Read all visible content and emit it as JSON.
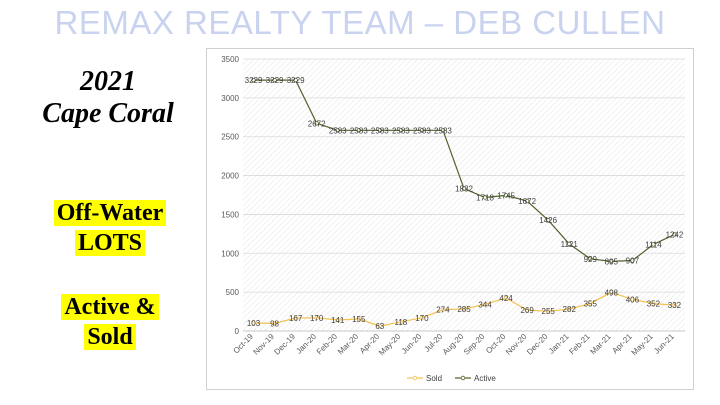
{
  "banner": {
    "title": "REMAX REALTY TEAM – DEB CULLEN"
  },
  "side": {
    "year": "2021",
    "city": "Cape Coral",
    "lots_line1": "Off-Water",
    "lots_line2": "LOTS",
    "active_line1": "Active &",
    "active_line2": "Sold"
  },
  "chart_data": {
    "type": "line",
    "categories": [
      "Oct-19",
      "Nov-19",
      "Dec-19",
      "Jan-20",
      "Feb-20",
      "Mar-20",
      "Apr-20",
      "May-20",
      "Jun-20",
      "Jul-20",
      "Aug-20",
      "Sep-20",
      "Oct-20",
      "Nov-20",
      "Dec-20",
      "Jan-21",
      "Feb-21",
      "Mar-21",
      "Apr-21",
      "May-21",
      "Jun-21"
    ],
    "series": [
      {
        "name": "Sold",
        "color": "#f2c14e",
        "values": [
          103,
          98,
          167,
          170,
          141,
          155,
          63,
          118,
          170,
          274,
          285,
          344,
          424,
          269,
          255,
          282,
          355,
          498,
          406,
          352,
          332
        ]
      },
      {
        "name": "Active",
        "color": "#4f6228",
        "values": [
          3229,
          3229,
          3229,
          2672,
          2583,
          2583,
          2583,
          2583,
          2583,
          2583,
          1832,
          1718,
          1745,
          1672,
          1426,
          1121,
          929,
          895,
          907,
          1114,
          1242
        ]
      }
    ],
    "yticks": [
      0,
      500,
      1000,
      1500,
      2000,
      2500,
      3000,
      3500
    ],
    "ylim": [
      0,
      3500
    ],
    "grid": true,
    "legend": "bottom"
  }
}
